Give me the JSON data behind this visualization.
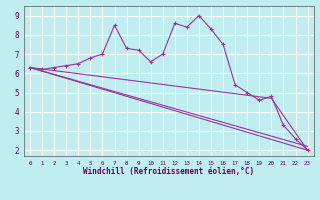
{
  "xlabel": "Windchill (Refroidissement éolien,°C)",
  "bg_color": "#c0eef0",
  "grid_color": "#ffffff",
  "line_color": "#993399",
  "xlim": [
    -0.5,
    23.5
  ],
  "ylim": [
    1.7,
    9.5
  ],
  "xticks": [
    0,
    1,
    2,
    3,
    4,
    5,
    6,
    7,
    8,
    9,
    10,
    11,
    12,
    13,
    14,
    15,
    16,
    17,
    18,
    19,
    20,
    21,
    22,
    23
  ],
  "yticks": [
    2,
    3,
    4,
    5,
    6,
    7,
    8,
    9
  ],
  "line1_x": [
    0,
    1,
    2,
    3,
    4,
    5,
    6,
    7,
    8,
    9,
    10,
    11,
    12,
    13,
    14,
    15,
    16,
    17,
    18,
    19,
    20,
    21,
    22,
    23
  ],
  "line1_y": [
    6.3,
    6.2,
    6.3,
    6.4,
    6.5,
    6.8,
    7.0,
    8.5,
    7.3,
    7.2,
    6.6,
    7.0,
    8.6,
    8.4,
    9.0,
    8.3,
    7.5,
    5.4,
    5.0,
    4.6,
    4.8,
    3.3,
    2.6,
    2.0
  ],
  "line2_x": [
    0,
    23
  ],
  "line2_y": [
    6.3,
    2.0
  ],
  "line3_x": [
    0,
    23
  ],
  "line3_y": [
    6.3,
    2.2
  ],
  "line4_x": [
    0,
    20,
    23
  ],
  "line4_y": [
    6.3,
    4.7,
    2.0
  ]
}
